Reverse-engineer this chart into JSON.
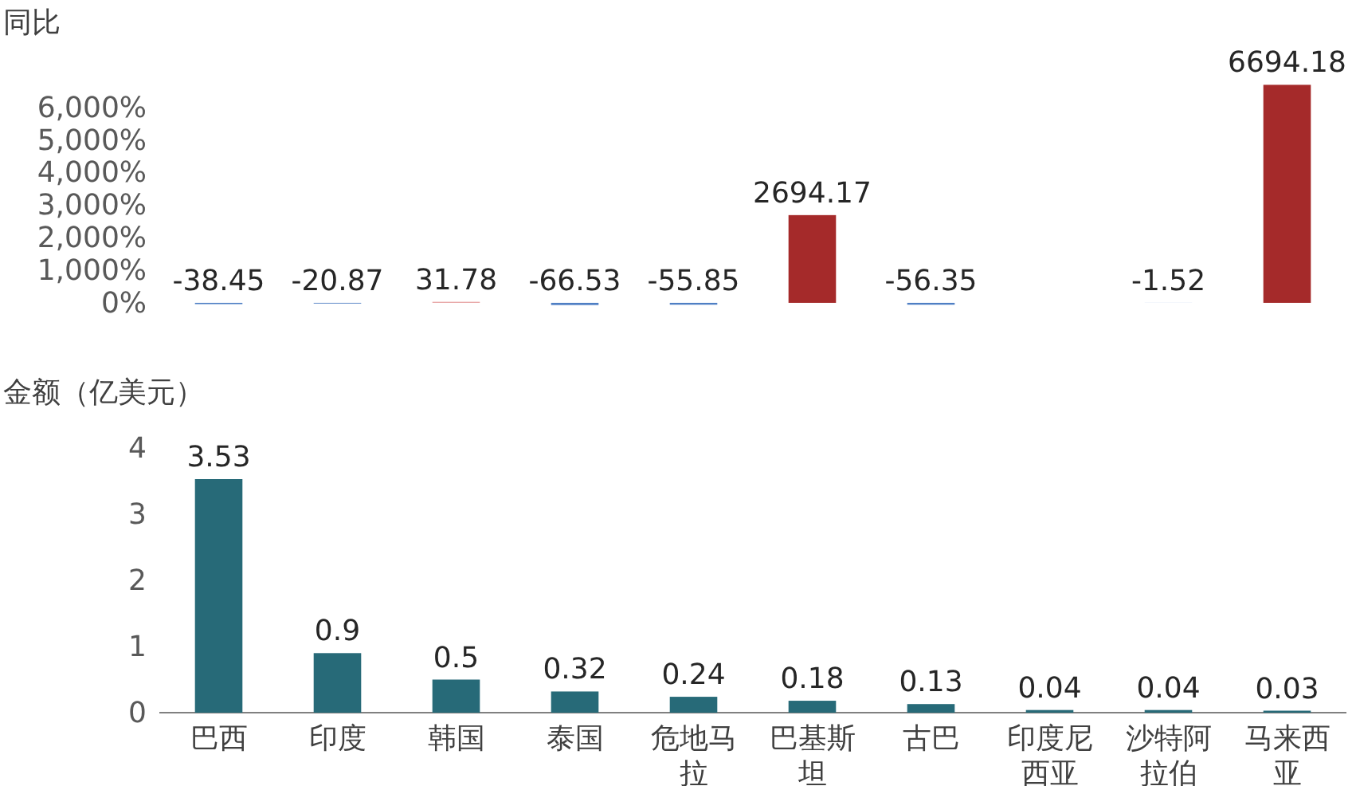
{
  "chart_data": [
    {
      "type": "bar",
      "ylabel": "同比",
      "categories": [
        "巴西",
        "印度",
        "韩国",
        "泰国",
        "危地马拉",
        "巴基斯坦",
        "古巴",
        "印度尼西亚",
        "沙特阿拉伯",
        "马来西亚"
      ],
      "values": [
        -38.45,
        -20.87,
        31.78,
        -66.53,
        -55.85,
        2694.17,
        -56.35,
        null,
        -1.52,
        6694.18
      ],
      "colors": [
        "#4f7fc4",
        "#4f7fc4",
        "#e8a3a3",
        "#4f7fc4",
        "#4f7fc4",
        "#a52a2a",
        "#4f7fc4",
        "#4f7fc4",
        "#4f7fc4",
        "#a52a2a"
      ],
      "ylim": [
        -100,
        6900
      ],
      "yticks": [
        {
          "value": 0,
          "label": "0%"
        },
        {
          "value": 1000,
          "label": "1,000%"
        },
        {
          "value": 2000,
          "label": "2,000%"
        },
        {
          "value": 3000,
          "label": "3,000%"
        },
        {
          "value": 4000,
          "label": "4,000%"
        },
        {
          "value": 5000,
          "label": "5,000%"
        },
        {
          "value": 6000,
          "label": "6,000%"
        }
      ],
      "data_labels": true,
      "tick_labels": "y"
    },
    {
      "type": "bar",
      "ylabel": "金额（亿美元）",
      "categories": [
        "巴西",
        "印度",
        "韩国",
        "泰国",
        "危地马拉",
        "巴基斯坦",
        "古巴",
        "印度尼西亚",
        "沙特阿拉伯",
        "马来西亚"
      ],
      "values": [
        3.53,
        0.9,
        0.5,
        0.32,
        0.24,
        0.18,
        0.13,
        0.04,
        0.04,
        0.03
      ],
      "color": "#276a78",
      "ylim": [
        0,
        4
      ],
      "yticks": [
        0,
        1,
        2,
        3,
        4
      ],
      "data_labels": true
    }
  ]
}
